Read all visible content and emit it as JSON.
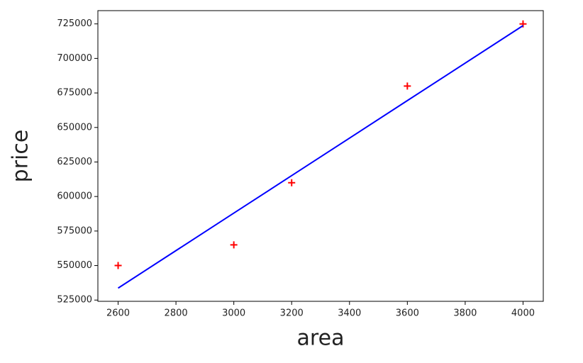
{
  "chart_data": {
    "type": "scatter",
    "x_label": "area",
    "y_label": "price",
    "x": [
      2600,
      3000,
      3200,
      3600,
      4000
    ],
    "series": [
      {
        "type": "scatter",
        "marker": "+",
        "color": "#ff0000",
        "values": [
          550000,
          565000,
          610000,
          680000,
          725000
        ]
      },
      {
        "type": "line",
        "color": "#0000ff",
        "values": [
          533664,
          587979,
          615137,
          669452,
          723767
        ]
      }
    ],
    "xlim": [
      2530,
      4070
    ],
    "ylim": [
      524100,
      734600
    ],
    "xticks": [
      2600,
      2800,
      3000,
      3200,
      3400,
      3600,
      3800,
      4000
    ],
    "yticks": [
      525000,
      550000,
      575000,
      600000,
      625000,
      650000,
      675000,
      700000,
      725000
    ],
    "grid": false
  }
}
